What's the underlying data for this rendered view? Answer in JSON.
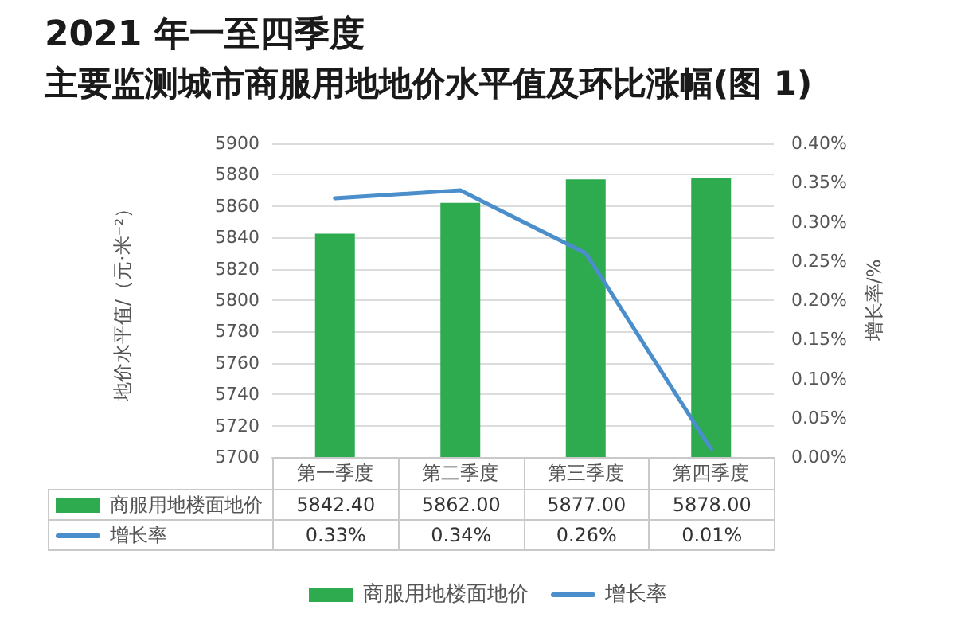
{
  "chart_data": {
    "type": "bar",
    "title": "2021 年一至四季度",
    "subtitle": "主要监测城市商服用地地价水平值及环比涨幅(图 1)",
    "ylabel": "地价水平值/（元·米⁻²）",
    "y2label": "增长率/%",
    "categories": [
      "第一季度",
      "第二季度",
      "第三季度",
      "第四季度"
    ],
    "series": [
      {
        "name": "商服用地楼面地价",
        "color": "#2eaa4f",
        "values": [
          5842.4,
          5862,
          5877,
          5878
        ],
        "value_labels": [
          "5842.40",
          "5862.00",
          "5877.00",
          "5878.00"
        ]
      },
      {
        "name": "增长率",
        "type": "line",
        "axis": "y2",
        "color": "#4a8fcb",
        "values": [
          0.33,
          0.34,
          0.26,
          0.01
        ],
        "value_labels": [
          "0.33%",
          "0.34%",
          "0.26%",
          "0.01%"
        ]
      }
    ],
    "ylim": [
      5700,
      5900
    ],
    "yticks": [
      5700,
      5720,
      5740,
      5760,
      5780,
      5800,
      5820,
      5840,
      5860,
      5880,
      5900
    ],
    "y2lim": [
      0,
      0.4
    ],
    "y2ticks": [
      {
        "value": 0,
        "label": "0.00%"
      },
      {
        "value": 0.05,
        "label": "0.05%"
      },
      {
        "value": 0.1,
        "label": "0.10%"
      },
      {
        "value": 0.15,
        "label": "0.15%"
      },
      {
        "value": 0.2,
        "label": "0.20%"
      },
      {
        "value": 0.25,
        "label": "0.25%"
      },
      {
        "value": 0.3,
        "label": "0.30%"
      },
      {
        "value": 0.35,
        "label": "0.35%"
      },
      {
        "value": 0.4,
        "label": "0.40%"
      }
    ],
    "grid": "y",
    "legend": "bottom",
    "marker": "none",
    "line_style": "solid"
  }
}
